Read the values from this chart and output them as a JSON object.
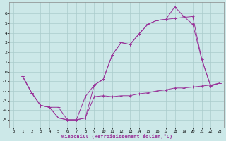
{
  "background_color": "#cce8e8",
  "grid_color": "#aacccc",
  "line_color": "#993399",
  "xlabel": "Windchill (Refroidissement éolien,°C)",
  "xlim": [
    -0.5,
    23.5
  ],
  "ylim": [
    -5.8,
    7.2
  ],
  "xticks": [
    0,
    1,
    2,
    3,
    4,
    5,
    6,
    7,
    8,
    9,
    10,
    11,
    12,
    13,
    14,
    15,
    16,
    17,
    18,
    19,
    20,
    21,
    22,
    23
  ],
  "yticks": [
    -5,
    -4,
    -3,
    -2,
    -1,
    0,
    1,
    2,
    3,
    4,
    5,
    6
  ],
  "line1_x": [
    1,
    2,
    3,
    4,
    5,
    6,
    7,
    8,
    9,
    10,
    11,
    12,
    13,
    14,
    15,
    16,
    17,
    18,
    19,
    20,
    21,
    22,
    23
  ],
  "line1_y": [
    -0.5,
    -2.2,
    -3.5,
    -3.7,
    -4.8,
    -5.0,
    -5.0,
    -4.8,
    -1.4,
    -0.8,
    1.7,
    3.0,
    2.8,
    3.9,
    4.9,
    5.3,
    5.4,
    6.7,
    5.7,
    4.9,
    1.3,
    -1.5,
    -1.2
  ],
  "line2_x": [
    1,
    2,
    3,
    4,
    5,
    6,
    7,
    8,
    9,
    10,
    11,
    12,
    13,
    14,
    15,
    16,
    17,
    18,
    19,
    20,
    21,
    22,
    23
  ],
  "line2_y": [
    -0.5,
    -2.2,
    -3.5,
    -3.7,
    -4.8,
    -5.0,
    -5.0,
    -4.8,
    -2.6,
    -2.5,
    -2.6,
    -2.5,
    -2.5,
    -2.3,
    -2.2,
    -2.0,
    -1.9,
    -1.7,
    -1.7,
    -1.6,
    -1.5,
    -1.4,
    -1.2
  ],
  "line3_x": [
    1,
    2,
    3,
    4,
    5,
    6,
    7,
    8,
    9,
    10,
    11,
    12,
    13,
    14,
    15,
    16,
    17,
    18,
    19,
    20,
    21,
    22,
    23
  ],
  "line3_y": [
    -0.5,
    -2.2,
    -3.5,
    -3.7,
    -3.7,
    -5.0,
    -5.0,
    -2.6,
    -1.4,
    -0.8,
    1.7,
    3.0,
    2.8,
    3.9,
    4.9,
    5.3,
    5.4,
    5.5,
    5.6,
    5.7,
    1.3,
    -1.5,
    -1.2
  ]
}
